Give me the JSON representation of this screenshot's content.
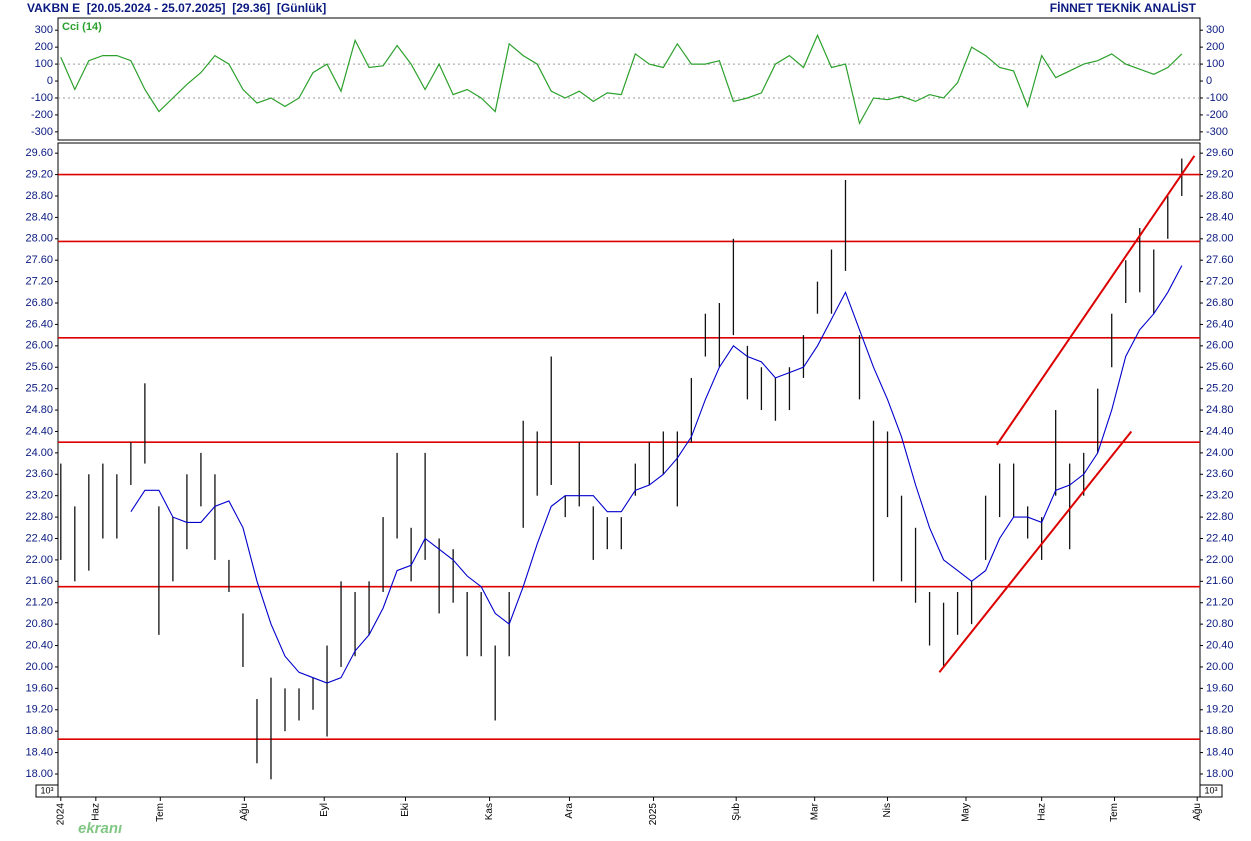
{
  "header": {
    "left": "VAKBN E  [20.05.2024 - 25.07.2025]  [29.36]  [Günlük]",
    "right": "FİNNET TEKNİK ANALİST",
    "watermark": "ekranı",
    "unit_label": "10³"
  },
  "chart_data": [
    {
      "type": "line",
      "xlim": [
        -0.2,
        81.3
      ],
      "ylim": [
        -348,
        372
      ],
      "yticks": [
        300,
        200,
        100,
        0,
        -100,
        -200,
        -300
      ],
      "levels": [
        100,
        -100
      ],
      "series": [
        {
          "name": "Cci (14)",
          "color": "#2ca02c",
          "values": [
            140,
            -50,
            120,
            150,
            150,
            120,
            -50,
            -180,
            -100,
            -20,
            50,
            150,
            100,
            -50,
            -130,
            -100,
            -150,
            -100,
            50,
            100,
            -60,
            240,
            80,
            90,
            210,
            100,
            -50,
            100,
            -80,
            -50,
            -100,
            -180,
            220,
            150,
            100,
            -60,
            -100,
            -60,
            -120,
            -70,
            -80,
            160,
            100,
            80,
            220,
            100,
            100,
            120,
            -120,
            -100,
            -70,
            100,
            150,
            80,
            270,
            80,
            100,
            -250,
            -100,
            -110,
            -90,
            -120,
            -80,
            -100,
            -10,
            200,
            150,
            80,
            60,
            -150,
            150,
            20,
            60,
            100,
            120,
            160,
            100,
            70,
            40,
            80,
            160
          ]
        }
      ]
    },
    {
      "type": "ohlc",
      "xlim": [
        -0.2,
        81.3
      ],
      "ylim": [
        17.57,
        29.79
      ],
      "yticks": [
        {
          "value": 29.6,
          "label": "29.60"
        },
        {
          "value": 29.2,
          "label": "29.20"
        },
        {
          "value": 28.8,
          "label": "28.80"
        },
        {
          "value": 28.4,
          "label": "28.40"
        },
        {
          "value": 28.0,
          "label": "28.00"
        },
        {
          "value": 27.6,
          "label": "27.60"
        },
        {
          "value": 27.2,
          "label": "27.20"
        },
        {
          "value": 26.8,
          "label": "26.80"
        },
        {
          "value": 26.4,
          "label": "26.40"
        },
        {
          "value": 26.0,
          "label": "26.00"
        },
        {
          "value": 25.6,
          "label": "25.60"
        },
        {
          "value": 25.2,
          "label": "25.20"
        },
        {
          "value": 24.8,
          "label": "24.80"
        },
        {
          "value": 24.4,
          "label": "24.40"
        },
        {
          "value": 24.0,
          "label": "24.00"
        },
        {
          "value": 23.6,
          "label": "23.60"
        },
        {
          "value": 23.2,
          "label": "23.20"
        },
        {
          "value": 22.8,
          "label": "22.80"
        },
        {
          "value": 22.4,
          "label": "22.40"
        },
        {
          "value": 22.0,
          "label": "22.00"
        },
        {
          "value": 21.6,
          "label": "21.60"
        },
        {
          "value": 21.2,
          "label": "21.20"
        },
        {
          "value": 20.8,
          "label": "20.80"
        },
        {
          "value": 20.4,
          "label": "20.40"
        },
        {
          "value": 20.0,
          "label": "20.00"
        },
        {
          "value": 19.6,
          "label": "19.60"
        },
        {
          "value": 19.2,
          "label": "19.20"
        },
        {
          "value": 18.8,
          "label": "18.80"
        },
        {
          "value": 18.4,
          "label": "18.40"
        },
        {
          "value": 18.0,
          "label": "18.00"
        }
      ],
      "xticks": [
        {
          "value": 0,
          "label": "2024"
        },
        {
          "value": 2.5,
          "label": "Haz"
        },
        {
          "value": 7.1,
          "label": "Tem"
        },
        {
          "value": 13.1,
          "label": "Ağu"
        },
        {
          "value": 18.8,
          "label": "Eyl"
        },
        {
          "value": 24.6,
          "label": "Eki"
        },
        {
          "value": 30.6,
          "label": "Kas"
        },
        {
          "value": 36.3,
          "label": "Ara"
        },
        {
          "value": 42.3,
          "label": "2025"
        },
        {
          "value": 48.2,
          "label": "Şub"
        },
        {
          "value": 53.8,
          "label": "Mar"
        },
        {
          "value": 59.0,
          "label": "Nis"
        },
        {
          "value": 64.6,
          "label": "May"
        },
        {
          "value": 70.0,
          "label": "Haz"
        },
        {
          "value": 75.2,
          "label": "Tem"
        },
        {
          "value": 81.1,
          "label": "Ağu"
        }
      ],
      "bars": {
        "color": "#111111",
        "high": [
          23.8,
          23.0,
          23.6,
          23.8,
          23.6,
          24.2,
          25.3,
          23.0,
          22.8,
          23.6,
          24.0,
          23.6,
          22.0,
          21.0,
          19.4,
          19.8,
          19.6,
          19.6,
          19.8,
          20.4,
          21.6,
          21.4,
          21.6,
          22.8,
          24.0,
          22.6,
          24.0,
          22.4,
          22.2,
          21.4,
          21.4,
          20.4,
          21.4,
          24.6,
          24.4,
          25.8,
          23.2,
          24.2,
          23.0,
          22.8,
          22.8,
          23.8,
          24.2,
          24.4,
          24.4,
          25.4,
          26.6,
          26.8,
          28.0,
          26.0,
          25.6,
          25.4,
          25.6,
          26.2,
          27.2,
          27.8,
          29.1,
          26.2,
          24.6,
          24.4,
          23.2,
          22.6,
          21.4,
          21.2,
          21.4,
          21.6,
          23.2,
          23.8,
          23.8,
          23.0,
          22.8,
          24.8,
          23.8,
          24.0,
          25.2,
          26.6,
          27.6,
          28.2,
          27.8,
          28.8,
          29.5
        ],
        "low": [
          22.0,
          21.6,
          21.8,
          22.4,
          22.4,
          23.4,
          23.8,
          20.6,
          21.6,
          22.2,
          23.0,
          22.0,
          21.4,
          20.0,
          18.2,
          17.9,
          18.8,
          19.0,
          19.2,
          18.7,
          20.0,
          20.2,
          20.6,
          21.4,
          22.4,
          21.6,
          22.0,
          21.0,
          21.2,
          20.2,
          20.2,
          19.0,
          20.2,
          22.6,
          23.2,
          23.4,
          22.8,
          23.0,
          22.0,
          22.2,
          22.2,
          23.2,
          23.4,
          23.6,
          23.0,
          24.2,
          25.8,
          25.6,
          26.2,
          25.0,
          24.8,
          24.6,
          24.8,
          25.4,
          26.6,
          26.6,
          27.4,
          25.0,
          21.6,
          22.8,
          21.6,
          21.2,
          20.4,
          20.0,
          20.6,
          20.8,
          22.0,
          22.8,
          22.8,
          22.4,
          22.0,
          23.2,
          22.2,
          23.2,
          24.0,
          25.6,
          26.8,
          27.0,
          26.6,
          28.0,
          28.8
        ]
      },
      "series": [
        {
          "color": "#0000cc",
          "values": [
            null,
            null,
            null,
            null,
            null,
            22.9,
            23.3,
            23.3,
            22.8,
            22.7,
            22.7,
            23.0,
            23.1,
            22.6,
            21.6,
            20.8,
            20.2,
            19.9,
            19.8,
            19.7,
            19.8,
            20.3,
            20.6,
            21.1,
            21.8,
            21.9,
            22.4,
            22.2,
            22.0,
            21.7,
            21.5,
            21.0,
            20.8,
            21.5,
            22.3,
            23.0,
            23.2,
            23.2,
            23.2,
            22.9,
            22.9,
            23.3,
            23.4,
            23.6,
            23.9,
            24.3,
            25.0,
            25.6,
            26.0,
            25.8,
            25.7,
            25.4,
            25.5,
            25.6,
            26.0,
            26.5,
            27.0,
            26.3,
            25.6,
            25.0,
            24.3,
            23.4,
            22.6,
            22.0,
            21.8,
            21.6,
            21.8,
            22.4,
            22.8,
            22.8,
            22.7,
            23.3,
            23.4,
            23.6,
            24.0,
            24.8,
            25.8,
            26.3,
            26.6,
            27.0,
            27.5
          ]
        }
      ],
      "hlines": {
        "color": "#dd0000",
        "values": [
          29.2,
          27.95,
          26.15,
          24.2,
          21.5,
          18.65
        ]
      },
      "trendlines": [
        {
          "color": "#dd0000",
          "x": [
            62.7,
            76.4
          ],
          "y": [
            19.9,
            24.4
          ]
        },
        {
          "color": "#dd0000",
          "x": [
            66.8,
            80.9
          ],
          "y": [
            24.15,
            29.55
          ]
        }
      ]
    }
  ]
}
